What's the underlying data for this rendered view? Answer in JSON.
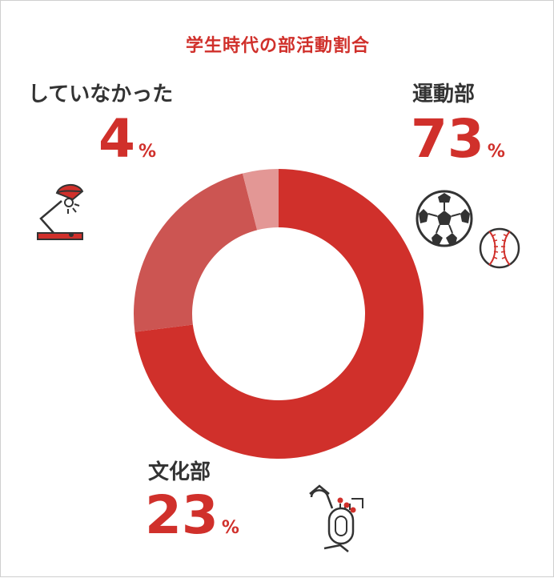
{
  "chart_data": {
    "type": "pie",
    "title": "学生時代の部活動割合",
    "categories": [
      "運動部",
      "文化部",
      "していなかった"
    ],
    "values": [
      73,
      23,
      4
    ],
    "unit": "%",
    "colors": [
      "#d0302b",
      "#cc5552",
      "#e39795"
    ],
    "donut": true
  },
  "labels": {
    "sports": {
      "name": "運動部",
      "value": "73",
      "unit": "%"
    },
    "culture": {
      "name": "文化部",
      "value": "23",
      "unit": "%"
    },
    "none": {
      "name": "していなかった",
      "value": "4",
      "unit": "%"
    }
  },
  "icons": {
    "sports": [
      "soccer-ball-icon",
      "baseball-icon"
    ],
    "culture": [
      "tuba-icon"
    ],
    "none": [
      "desk-lamp-icon"
    ]
  }
}
